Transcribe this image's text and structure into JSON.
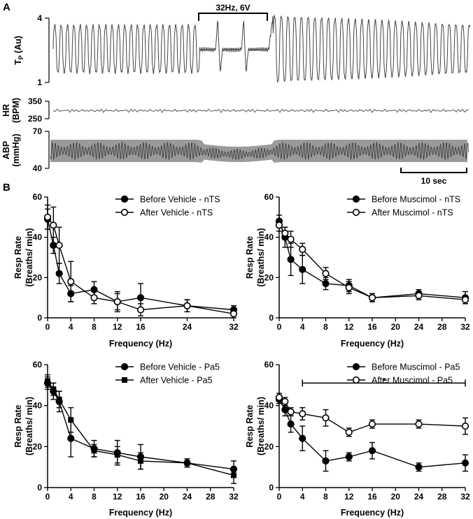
{
  "panels": {
    "a": "A",
    "b": "B"
  },
  "trace_section": {
    "stimulus_label": "32Hz, 6V",
    "scale_bar_label": "10 sec",
    "tp": {
      "ylabel_main": "T",
      "ylabel_sub": "P",
      "ylabel_unit": "(Au)",
      "ymax_label": "4",
      "ymin_label": "1",
      "ylim": [
        1,
        4
      ]
    },
    "hr": {
      "ylabel_line1": "HR",
      "ylabel_line2": "(BPM)",
      "ymax_label": "350",
      "ymin_label": "250",
      "ylim": [
        250,
        350
      ]
    },
    "abp": {
      "ylabel_line1": "ABP",
      "ylabel_line2": "(mmHg)",
      "ymax_label": "70",
      "ymin_label": "40",
      "ylim": [
        40,
        70
      ]
    }
  },
  "chart_data": [
    {
      "type": "line",
      "ylabel_line1": "Resp Rate",
      "ylabel_line2": "(Breaths/ min)",
      "xlabel": "Frequency (Hz)",
      "xlim": [
        0,
        32
      ],
      "ylim": [
        0,
        60
      ],
      "xticks": [
        0,
        4,
        8,
        12,
        16,
        24,
        32
      ],
      "yticks": [
        0,
        20,
        40,
        60
      ],
      "series": [
        {
          "name": "Before Vehicle - nTS",
          "marker": "filled-circle",
          "x": [
            0,
            1,
            2,
            4,
            8,
            12,
            16,
            24,
            32
          ],
          "values": [
            49,
            36,
            22,
            12,
            14,
            8,
            10,
            6,
            4
          ],
          "errors": [
            5,
            4,
            5,
            4,
            4,
            5,
            7,
            3,
            2
          ]
        },
        {
          "name": "After Vehicle - nTS",
          "marker": "open-circle",
          "x": [
            0,
            1,
            2,
            4,
            8,
            12,
            16,
            24,
            32
          ],
          "values": [
            50,
            46,
            36,
            18,
            10,
            8,
            4,
            6,
            2
          ],
          "errors": [
            6,
            9,
            9,
            10,
            3,
            4,
            3,
            3,
            2
          ]
        }
      ]
    },
    {
      "type": "line",
      "ylabel_line1": "Resp Rate",
      "ylabel_line2": "(Breaths/ min)",
      "xlabel": "Frequency (Hz)",
      "xlim": [
        0,
        32
      ],
      "ylim": [
        0,
        60
      ],
      "xticks": [
        0,
        4,
        8,
        12,
        16,
        20,
        24,
        28,
        32
      ],
      "yticks": [
        0,
        20,
        40,
        60
      ],
      "series": [
        {
          "name": "Before Muscimol - nTS",
          "marker": "filled-circle",
          "x": [
            0,
            1,
            2,
            4,
            8,
            12,
            16,
            24,
            32
          ],
          "values": [
            48,
            40,
            29,
            24,
            17,
            16,
            10,
            12,
            10
          ],
          "errors": [
            3,
            5,
            8,
            7,
            3,
            3,
            2,
            2,
            3
          ]
        },
        {
          "name": "After Muscimol - nTS",
          "marker": "open-circle",
          "x": [
            0,
            1,
            2,
            4,
            8,
            12,
            16,
            24,
            32
          ],
          "values": [
            46,
            42,
            39,
            34,
            22,
            15,
            10,
            11,
            9
          ],
          "errors": [
            3,
            3,
            4,
            3,
            3,
            3,
            2,
            2,
            2
          ]
        }
      ]
    },
    {
      "type": "line",
      "ylabel_line1": "Resp Rate",
      "ylabel_line2": "(Breaths/ min)",
      "xlabel": "Frequency (Hz)",
      "xlim": [
        0,
        32
      ],
      "ylim": [
        0,
        60
      ],
      "xticks": [
        0,
        4,
        8,
        12,
        16,
        20,
        24,
        28,
        32
      ],
      "yticks": [
        0,
        20,
        40,
        60
      ],
      "series": [
        {
          "name": "Before Vehicle - Pa5",
          "marker": "filled-circle",
          "x": [
            0,
            1,
            2,
            4,
            8,
            12,
            16,
            24,
            32
          ],
          "values": [
            51,
            47,
            42,
            24,
            19,
            17,
            15,
            12,
            9
          ],
          "errors": [
            3,
            4,
            5,
            9,
            4,
            6,
            6,
            2,
            4
          ]
        },
        {
          "name": "After Vehicle - Pa5",
          "marker": "filled-square",
          "x": [
            0,
            1,
            2,
            4,
            8,
            12,
            16,
            24,
            32
          ],
          "values": [
            52,
            48,
            43,
            33,
            18,
            16,
            13,
            12,
            6
          ],
          "errors": [
            3,
            3,
            4,
            6,
            3,
            4,
            4,
            2,
            4
          ]
        }
      ]
    },
    {
      "type": "line",
      "ylabel_line1": "Resp Rate",
      "ylabel_line2": "(Breaths/ min)",
      "xlabel": "Frequency (Hz)",
      "xlim": [
        0,
        32
      ],
      "ylim": [
        0,
        60
      ],
      "xticks": [
        0,
        4,
        8,
        12,
        16,
        20,
        24,
        28,
        32
      ],
      "yticks": [
        0,
        20,
        40,
        60
      ],
      "annotation": {
        "text": "*",
        "x_start": 4,
        "x_end": 32
      },
      "series": [
        {
          "name": "Before Muscimol - Pa5",
          "marker": "filled-circle",
          "x": [
            0,
            1,
            2,
            4,
            8,
            12,
            16,
            24,
            32
          ],
          "values": [
            43,
            38,
            31,
            24,
            13,
            15,
            18,
            10,
            12
          ],
          "errors": [
            2,
            3,
            4,
            6,
            5,
            2,
            4,
            2,
            4
          ]
        },
        {
          "name": "After Muscimol - Pa5",
          "marker": "open-circle",
          "x": [
            0,
            1,
            2,
            4,
            8,
            12,
            16,
            24,
            32
          ],
          "values": [
            44,
            42,
            37,
            36,
            34,
            27,
            31,
            31,
            30
          ],
          "errors": [
            2,
            2,
            2,
            3,
            4,
            2,
            2,
            2,
            4
          ]
        }
      ]
    }
  ]
}
